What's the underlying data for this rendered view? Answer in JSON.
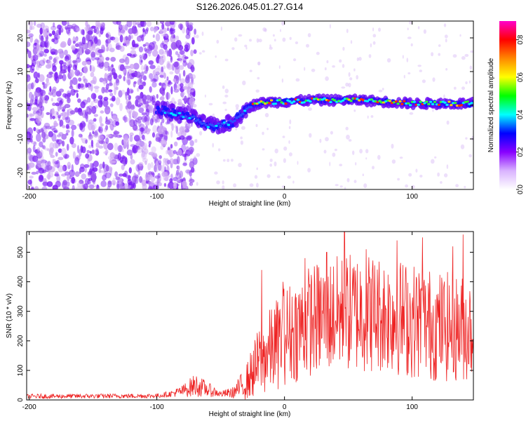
{
  "title": "S126.2026.045.01.27.G14",
  "colors": {
    "snr_line": "#ee2222",
    "axis": "#000000",
    "background": "#ffffff"
  },
  "chart_data": [
    {
      "type": "heatmap",
      "name": "spectrogram",
      "xlabel": "Height of straight line (km)",
      "ylabel": "Frequency (Hz)",
      "xlim": [
        -202,
        148
      ],
      "ylim": [
        -25,
        25
      ],
      "xticks": [
        -200,
        -100,
        0,
        100
      ],
      "yticks": [
        -20,
        -10,
        0,
        10,
        20
      ],
      "colorbar": {
        "label": "Normalized spectral amplitude",
        "range": [
          0.0,
          0.9
        ],
        "ticks": [
          0.0,
          0.2,
          0.4,
          0.6,
          0.8
        ],
        "tick_labels": [
          "0.0",
          "0.2",
          "0.4",
          "0.6",
          "0.8"
        ],
        "colormap": [
          "#ffffff",
          "#d9b3ff",
          "#8800ff",
          "#0000ff",
          "#00ffff",
          "#00ff00",
          "#ffff00",
          "#ff8800",
          "#ff0000",
          "#ff00cc"
        ]
      },
      "signal_track": {
        "x": [
          -100,
          -90,
          -80,
          -70,
          -60,
          -50,
          -40,
          -35,
          -30,
          -25,
          -20,
          -10,
          0,
          20,
          40,
          60,
          80,
          100,
          120,
          148
        ],
        "freq": [
          -1,
          -2,
          -3,
          -4,
          -6,
          -6,
          -5,
          -3,
          -1,
          0,
          0.5,
          1,
          1,
          1.5,
          1.5,
          1.5,
          1,
          0.5,
          0.5,
          0.5
        ]
      },
      "noise_region_x": [
        -202,
        -100
      ]
    },
    {
      "type": "line",
      "name": "snr",
      "xlabel": "Height of straight line (km)",
      "ylabel": "SNR (10 * v/v)",
      "xlim": [
        -202,
        148
      ],
      "ylim": [
        0,
        570
      ],
      "xticks": [
        -200,
        -100,
        0,
        100
      ],
      "yticks": [
        0,
        100,
        200,
        300,
        400,
        500
      ],
      "series": [
        {
          "name": "SNR",
          "envelope_x": [
            -202,
            -100,
            -90,
            -80,
            -70,
            -60,
            -50,
            -40,
            -30,
            -20,
            -10,
            0,
            10,
            20,
            40,
            60,
            80,
            100,
            120,
            148
          ],
          "envelope_mean": [
            12,
            14,
            20,
            30,
            50,
            35,
            20,
            25,
            60,
            130,
            170,
            220,
            240,
            270,
            290,
            300,
            290,
            270,
            250,
            240
          ],
          "envelope_spread": [
            8,
            8,
            10,
            20,
            40,
            25,
            10,
            20,
            60,
            120,
            150,
            170,
            180,
            190,
            200,
            210,
            200,
            200,
            190,
            180
          ],
          "peaks": [
            [
              -18,
              440
            ],
            [
              -1,
              400
            ],
            [
              16,
              480
            ],
            [
              33,
              500
            ],
            [
              47,
              570
            ],
            [
              64,
              510
            ],
            [
              88,
              540
            ],
            [
              108,
              550
            ],
            [
              132,
              520
            ],
            [
              140,
              560
            ]
          ]
        }
      ]
    }
  ]
}
